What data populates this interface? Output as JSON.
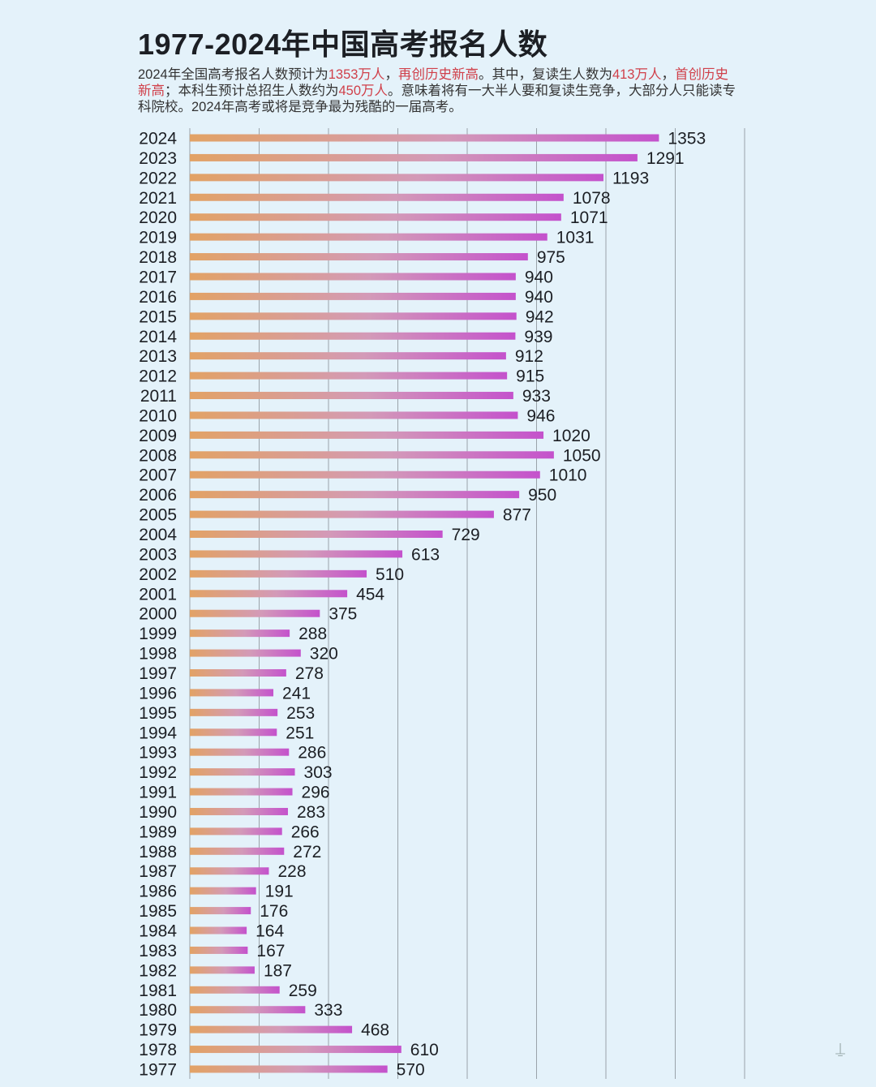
{
  "title": "1977-2024年中国高考报名人数",
  "subtitle": [
    {
      "text": "2024年全国高考报名人数预计为",
      "highlight": false
    },
    {
      "text": "1353万人",
      "highlight": true
    },
    {
      "text": "，",
      "highlight": false
    },
    {
      "text": "再创历史新高",
      "highlight": true
    },
    {
      "text": "。其中，复读生人数为",
      "highlight": false
    },
    {
      "text": "413万人",
      "highlight": true
    },
    {
      "text": "，",
      "highlight": false
    },
    {
      "text": "首创历史新高",
      "highlight": true
    },
    {
      "text": "；本科生预计总招生人数约为",
      "highlight": false
    },
    {
      "text": "450万人",
      "highlight": true
    },
    {
      "text": "。意味着将有一大半人要和复读生竞争，大部分人只能读专科院校。2024年高考或将是竞争最为残酷的一届高考。",
      "highlight": false
    }
  ],
  "colors": {
    "background": "#e4f2fa",
    "bar_start": "#e2a265",
    "bar_mid": "#d39ab8",
    "bar_end": "#c452cc",
    "highlight_text": "#d0404a",
    "grid": "#9aa3aa"
  },
  "chart_data": {
    "type": "bar",
    "orientation": "horizontal",
    "title": "1977-2024年中国高考报名人数",
    "xlabel": "",
    "ylabel": "",
    "xlim": [
      0,
      1600
    ],
    "grid": true,
    "grid_step": 200,
    "categories": [
      "2024",
      "2023",
      "2022",
      "2021",
      "2020",
      "2019",
      "2018",
      "2017",
      "2016",
      "2015",
      "2014",
      "2013",
      "2012",
      "2011",
      "2010",
      "2009",
      "2008",
      "2007",
      "2006",
      "2005",
      "2004",
      "2003",
      "2002",
      "2001",
      "2000",
      "1999",
      "1998",
      "1997",
      "1996",
      "1995",
      "1994",
      "1993",
      "1992",
      "1991",
      "1990",
      "1989",
      "1988",
      "1987",
      "1986",
      "1985",
      "1984",
      "1983",
      "1982",
      "1981",
      "1980",
      "1979",
      "1978",
      "1977"
    ],
    "values": [
      1353,
      1291,
      1193,
      1078,
      1071,
      1031,
      975,
      940,
      940,
      942,
      939,
      912,
      915,
      933,
      946,
      1020,
      1050,
      1010,
      950,
      877,
      729,
      613,
      510,
      454,
      375,
      288,
      320,
      278,
      241,
      253,
      251,
      286,
      303,
      296,
      283,
      266,
      272,
      228,
      191,
      176,
      164,
      167,
      187,
      259,
      333,
      468,
      610,
      570
    ]
  }
}
